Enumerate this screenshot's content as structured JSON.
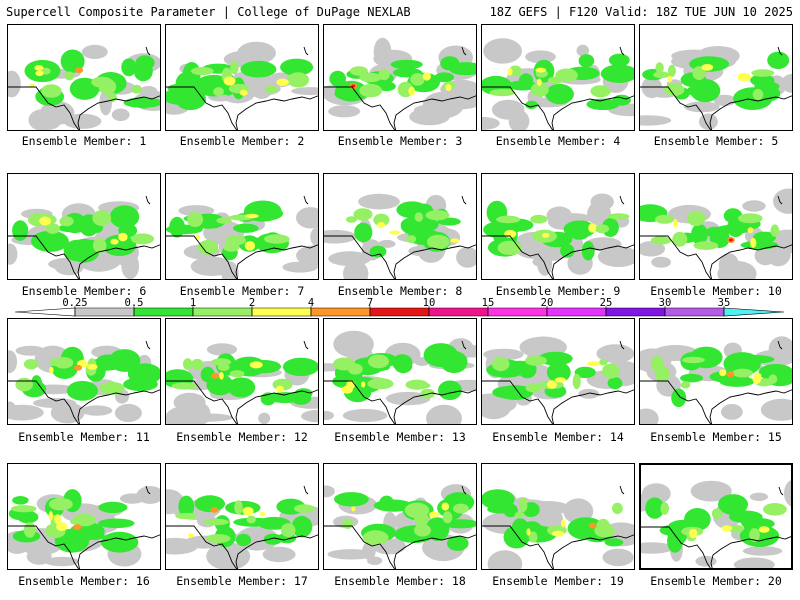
{
  "header": {
    "left": "Supercell Composite Parameter | College of DuPage NEXLAB",
    "right": "18Z GEFS | F120 Valid: 18Z TUE JUN 10 2025"
  },
  "member_label_prefix": "Ensemble Member:",
  "members": [
    {
      "number": "1"
    },
    {
      "number": "2"
    },
    {
      "number": "3"
    },
    {
      "number": "4"
    },
    {
      "number": "5"
    },
    {
      "number": "6"
    },
    {
      "number": "7"
    },
    {
      "number": "8"
    },
    {
      "number": "9"
    },
    {
      "number": "10"
    },
    {
      "number": "11"
    },
    {
      "number": "12"
    },
    {
      "number": "13"
    },
    {
      "number": "14"
    },
    {
      "number": "15"
    },
    {
      "number": "16"
    },
    {
      "number": "17"
    },
    {
      "number": "18"
    },
    {
      "number": "19"
    },
    {
      "number": "20"
    }
  ],
  "selected_member": "20",
  "colorbar": {
    "thresholds": [
      "0.25",
      "0.5",
      "1",
      "2",
      "4",
      "7",
      "10",
      "15",
      "20",
      "25",
      "30",
      "35"
    ],
    "colors": [
      "#c8c8c8",
      "#32e632",
      "#96f064",
      "#ffff50",
      "#ff9628",
      "#e61414",
      "#f0148c",
      "#ff32e6",
      "#e632ff",
      "#8214e6",
      "#b45ae6",
      "#50f0f0"
    ]
  }
}
